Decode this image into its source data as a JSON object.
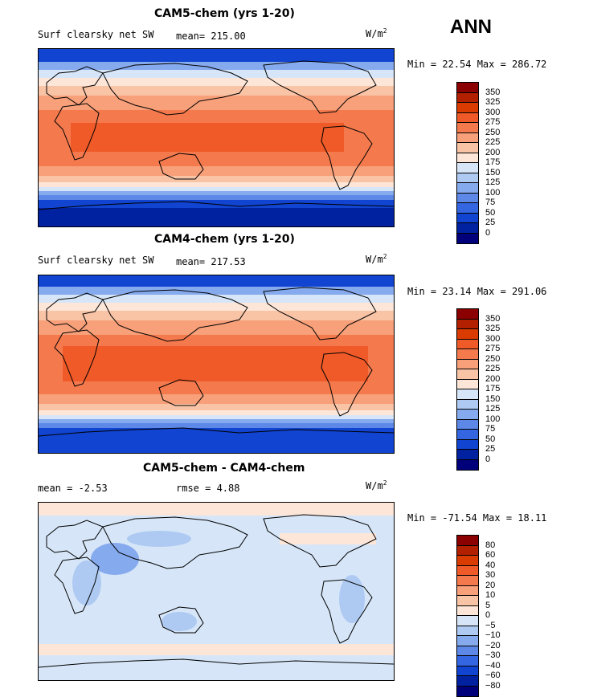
{
  "season": "ANN",
  "panels": [
    {
      "id": "cam5",
      "title": "CAM5-chem (yrs 1-20)",
      "left_label": "Surf clearsky net SW",
      "stat1": "mean= 215.00",
      "stat2": "",
      "units_base": "W/m",
      "units_exp": "2",
      "minmax": "Min =  22.54 Max = 286.72"
    },
    {
      "id": "cam4",
      "title": "CAM4-chem (yrs 1-20)",
      "left_label": "Surf clearsky net SW",
      "stat1": "mean= 217.53",
      "stat2": "",
      "units_base": "W/m",
      "units_exp": "2",
      "minmax": "Min =  23.14 Max = 291.06"
    },
    {
      "id": "diff",
      "title": "CAM5-chem - CAM4-chem",
      "left_label": "mean =  -2.53",
      "stat1": "rmse =   4.88",
      "stat2": "",
      "units_base": "W/m",
      "units_exp": "2",
      "minmax": "Min = -71.54 Max =  18.11"
    }
  ],
  "colorbars": {
    "absolute": {
      "labels": [
        "350",
        "325",
        "300",
        "275",
        "250",
        "225",
        "200",
        "175",
        "150",
        "125",
        "100",
        "75",
        "50",
        "25",
        "0"
      ],
      "colors": [
        "#8b0000",
        "#b22000",
        "#d93b00",
        "#ef5a28",
        "#f47a4e",
        "#f7a07a",
        "#f9c3a6",
        "#fde6d8",
        "#d6e6f8",
        "#aecaf2",
        "#86aaee",
        "#5d88e8",
        "#3366e0",
        "#1144d0",
        "#0022a0",
        "#00007a"
      ]
    },
    "difference": {
      "labels": [
        "80",
        "60",
        "40",
        "30",
        "20",
        "10",
        "5",
        "0",
        "−5",
        "−10",
        "−20",
        "−30",
        "−40",
        "−60",
        "−80"
      ],
      "colors": [
        "#8b0000",
        "#b22000",
        "#d93b00",
        "#ef5a28",
        "#f47a4e",
        "#f7a07a",
        "#f9c3a6",
        "#fde6d8",
        "#d6e6f8",
        "#aecaf2",
        "#86aaee",
        "#5d88e8",
        "#3366e0",
        "#1144d0",
        "#0022a0",
        "#00007a"
      ]
    }
  },
  "chart_data": [
    {
      "type": "heatmap",
      "title": "CAM5-chem (yrs 1-20)",
      "variable": "Surf clearsky net SW",
      "units": "W/m2",
      "mean": 215.0,
      "min": 22.54,
      "max": 286.72,
      "levels": [
        0,
        25,
        50,
        75,
        100,
        125,
        150,
        175,
        200,
        225,
        250,
        275,
        300,
        325,
        350
      ],
      "zonal_bands": [
        {
          "lat_range": [
            60,
            90
          ],
          "level_range": [
            0,
            125
          ]
        },
        {
          "lat_range": [
            40,
            60
          ],
          "level_range": [
            125,
            200
          ]
        },
        {
          "lat_range": [
            20,
            40
          ],
          "level_range": [
            200,
            250
          ]
        },
        {
          "lat_range": [
            -20,
            20
          ],
          "level_range": [
            250,
            300
          ]
        },
        {
          "lat_range": [
            -40,
            -20
          ],
          "level_range": [
            200,
            250
          ]
        },
        {
          "lat_range": [
            -60,
            -40
          ],
          "level_range": [
            125,
            200
          ]
        },
        {
          "lat_range": [
            -90,
            -60
          ],
          "level_range": [
            0,
            125
          ]
        }
      ]
    },
    {
      "type": "heatmap",
      "title": "CAM4-chem (yrs 1-20)",
      "variable": "Surf clearsky net SW",
      "units": "W/m2",
      "mean": 217.53,
      "min": 23.14,
      "max": 291.06,
      "levels": [
        0,
        25,
        50,
        75,
        100,
        125,
        150,
        175,
        200,
        225,
        250,
        275,
        300,
        325,
        350
      ],
      "zonal_bands": [
        {
          "lat_range": [
            60,
            90
          ],
          "level_range": [
            0,
            125
          ]
        },
        {
          "lat_range": [
            40,
            60
          ],
          "level_range": [
            125,
            200
          ]
        },
        {
          "lat_range": [
            20,
            40
          ],
          "level_range": [
            200,
            250
          ]
        },
        {
          "lat_range": [
            -20,
            20
          ],
          "level_range": [
            250,
            300
          ]
        },
        {
          "lat_range": [
            -40,
            -20
          ],
          "level_range": [
            200,
            250
          ]
        },
        {
          "lat_range": [
            -60,
            -40
          ],
          "level_range": [
            125,
            200
          ]
        },
        {
          "lat_range": [
            -90,
            -60
          ],
          "level_range": [
            0,
            125
          ]
        }
      ]
    },
    {
      "type": "heatmap",
      "title": "CAM5-chem - CAM4-chem",
      "units": "W/m2",
      "mean": -2.53,
      "rmse": 4.88,
      "min": -71.54,
      "max": 18.11,
      "levels": [
        -80,
        -60,
        -40,
        -30,
        -20,
        -10,
        -5,
        0,
        5,
        10,
        20,
        30,
        40,
        60,
        80
      ],
      "zonal_bands": [
        {
          "lat_range": [
            60,
            90
          ],
          "level_range": [
            0,
            5
          ]
        },
        {
          "lat_range": [
            -40,
            60
          ],
          "level_range": [
            -5,
            0
          ]
        },
        {
          "lat_range": [
            -60,
            -40
          ],
          "level_range": [
            0,
            5
          ]
        },
        {
          "lat_range": [
            -90,
            -60
          ],
          "level_range": [
            -5,
            0
          ]
        }
      ]
    }
  ]
}
